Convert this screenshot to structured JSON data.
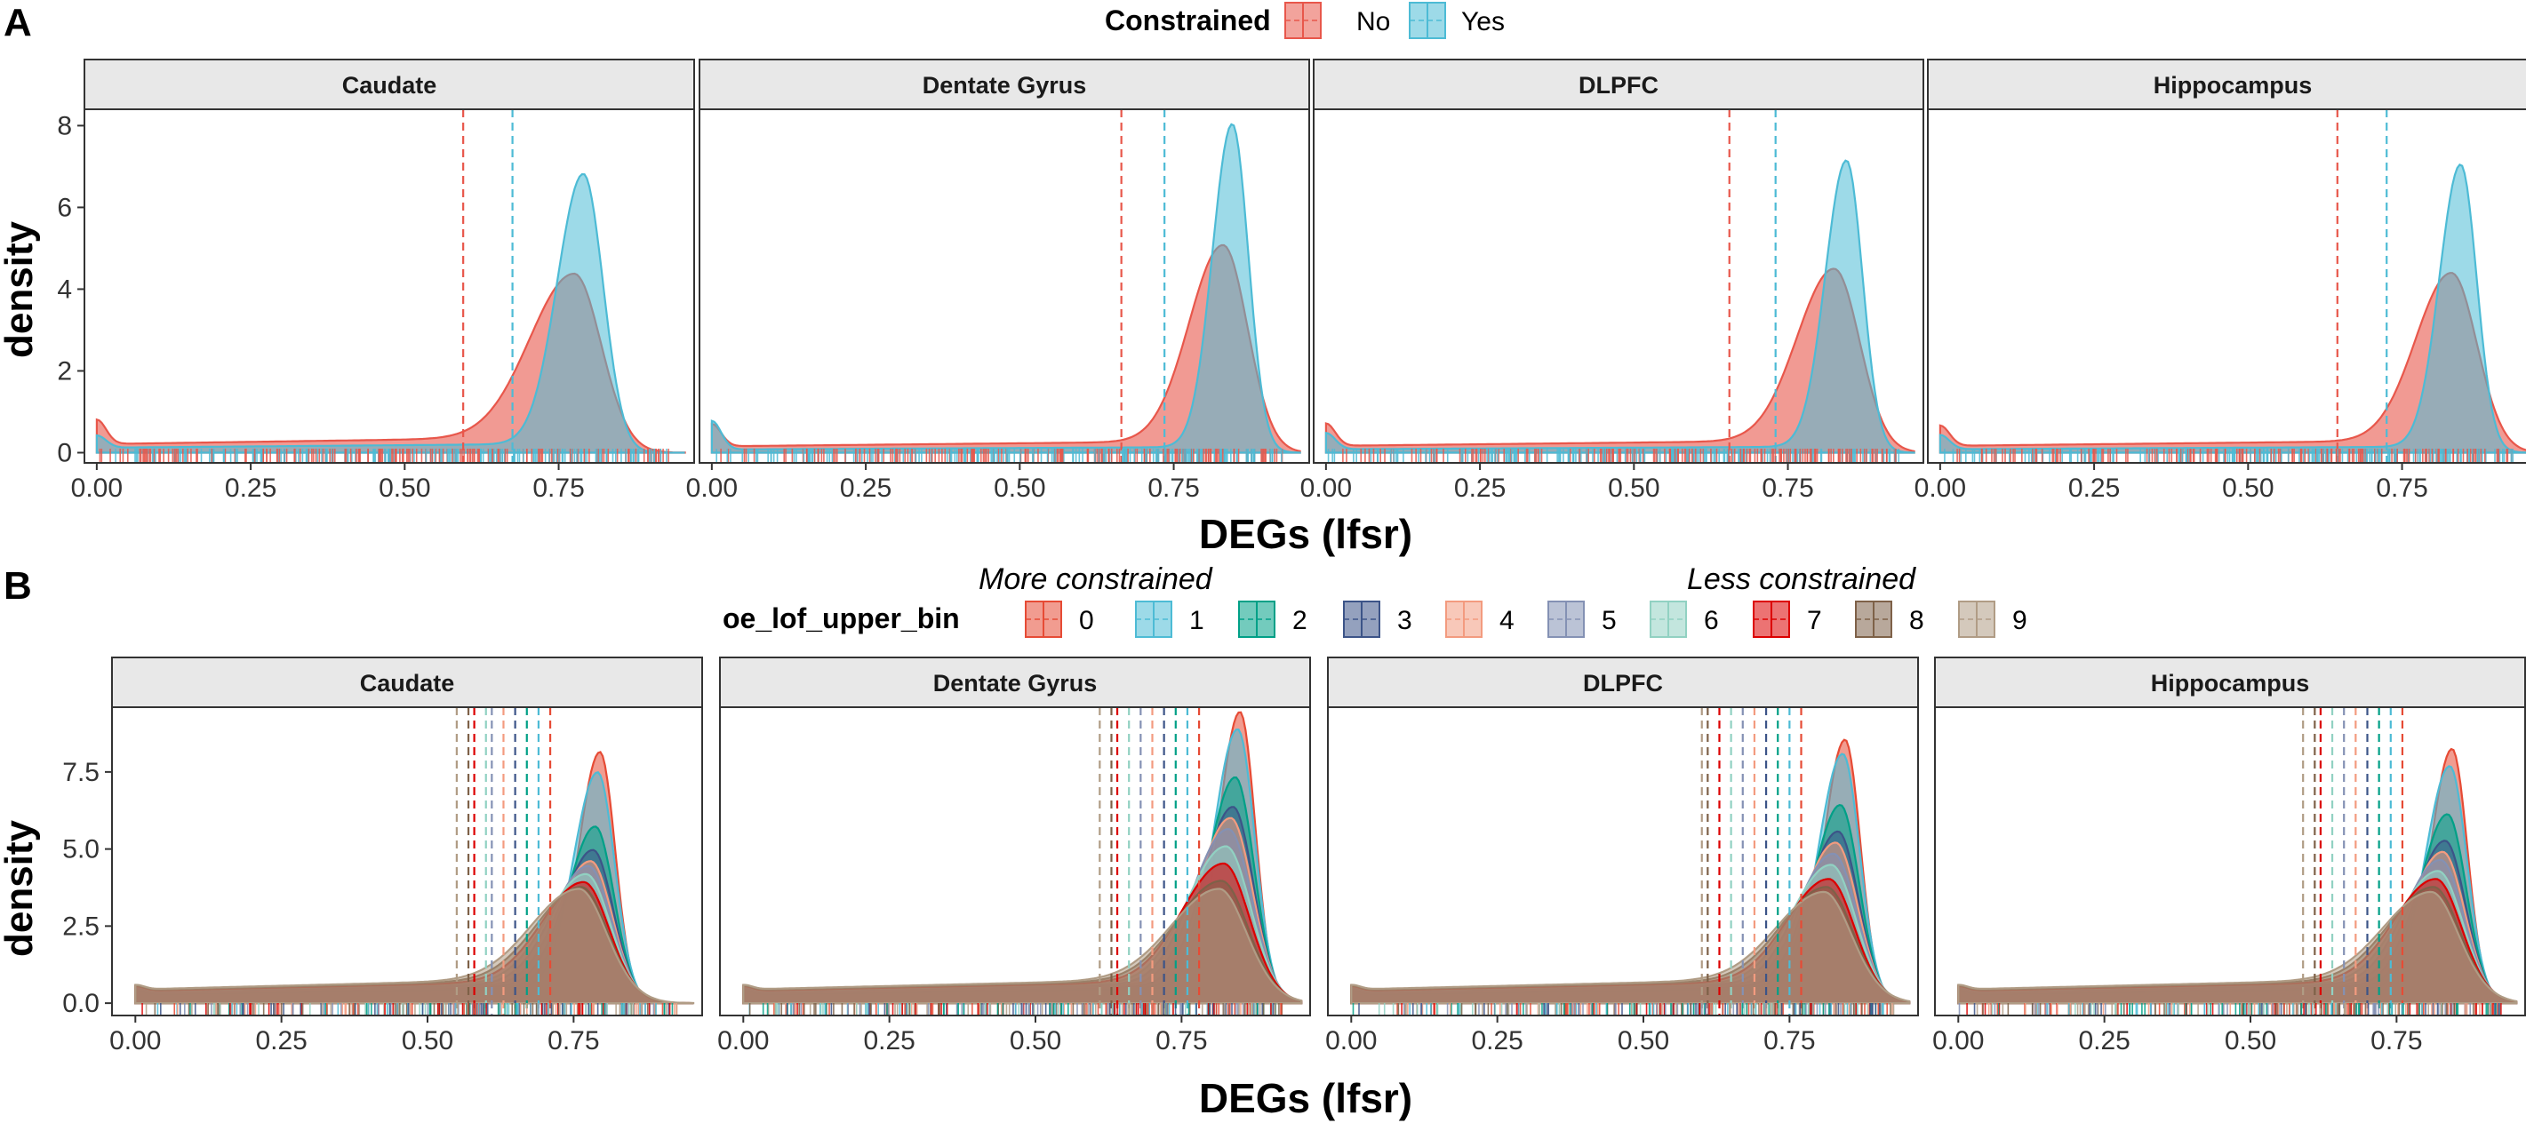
{
  "figure": {
    "panel_a_letter": "A",
    "panel_b_letter": "B"
  },
  "colors": {
    "constrained_no": "#E8574B",
    "constrained_yes": "#4DBBD5",
    "bins": [
      "#E64B35",
      "#4DBBD5",
      "#00A087",
      "#3C5488",
      "#F39B7F",
      "#8491B4",
      "#91D1C2",
      "#DC0000",
      "#7E6148",
      "#B09C85"
    ]
  },
  "chart_data": [
    {
      "type": "area",
      "panel": "A",
      "subtype": "density",
      "facets": [
        "Caudate",
        "Dentate Gyrus",
        "DLPFC",
        "Hippocampus"
      ],
      "xlabel": "DEGs (lfsr)",
      "ylabel": "density",
      "xlim": [
        -0.02,
        0.97
      ],
      "ylim": [
        -0.25,
        8.4
      ],
      "xticks": [
        "0.00",
        "0.25",
        "0.50",
        "0.75"
      ],
      "yticks": [
        "0",
        "2",
        "4",
        "6",
        "8"
      ],
      "legend": {
        "title": "Constrained",
        "position": "top",
        "entries": [
          "No",
          "Yes"
        ]
      },
      "grid": false,
      "rug": true,
      "series_params": {
        "Caudate": {
          "No": {
            "peak_x": 0.775,
            "peak_y": 4.0,
            "sd_left": 0.072,
            "sd_right": 0.045,
            "tail_y": 0.38,
            "bump_y": 0.6,
            "mean_line": 0.595
          },
          "Yes": {
            "peak_x": 0.79,
            "peak_y": 6.6,
            "sd_left": 0.042,
            "sd_right": 0.032,
            "tail_y": 0.22,
            "bump_y": 0.3,
            "mean_line": 0.675
          }
        },
        "Dentate Gyrus": {
          "No": {
            "peak_x": 0.83,
            "peak_y": 4.8,
            "sd_left": 0.055,
            "sd_right": 0.04,
            "tail_y": 0.28,
            "bump_y": 0.55,
            "mean_line": 0.665
          },
          "Yes": {
            "peak_x": 0.845,
            "peak_y": 7.9,
            "sd_left": 0.032,
            "sd_right": 0.026,
            "tail_y": 0.14,
            "bump_y": 0.7,
            "mean_line": 0.735
          }
        },
        "DLPFC": {
          "No": {
            "peak_x": 0.825,
            "peak_y": 4.2,
            "sd_left": 0.06,
            "sd_right": 0.042,
            "tail_y": 0.3,
            "bump_y": 0.55,
            "mean_line": 0.655
          },
          "Yes": {
            "peak_x": 0.845,
            "peak_y": 7.0,
            "sd_left": 0.034,
            "sd_right": 0.026,
            "tail_y": 0.15,
            "bump_y": 0.4,
            "mean_line": 0.73
          }
        },
        "Hippocampus": {
          "No": {
            "peak_x": 0.83,
            "peak_y": 4.1,
            "sd_left": 0.058,
            "sd_right": 0.042,
            "tail_y": 0.3,
            "bump_y": 0.5,
            "mean_line": 0.645
          },
          "Yes": {
            "peak_x": 0.845,
            "peak_y": 6.9,
            "sd_left": 0.034,
            "sd_right": 0.026,
            "tail_y": 0.15,
            "bump_y": 0.35,
            "mean_line": 0.725
          }
        }
      }
    },
    {
      "type": "area",
      "panel": "B",
      "subtype": "density",
      "facets": [
        "Caudate",
        "Dentate Gyrus",
        "DLPFC",
        "Hippocampus"
      ],
      "xlabel": "DEGs (lfsr)",
      "ylabel": "density",
      "xlim": [
        -0.04,
        0.97
      ],
      "ylim": [
        -0.4,
        9.6
      ],
      "xticks": [
        "0.00",
        "0.25",
        "0.50",
        "0.75"
      ],
      "yticks": [
        "0.0",
        "2.5",
        "5.0",
        "7.5"
      ],
      "legend": {
        "title": "oe_lof_upper_bin",
        "position": "top",
        "subtitle_left": "More constrained",
        "subtitle_right": "Less constrained",
        "entries": [
          "0",
          "1",
          "2",
          "3",
          "4",
          "5",
          "6",
          "7",
          "8",
          "9"
        ]
      },
      "grid": false,
      "rug": true,
      "peaks": {
        "Caudate": [
          7.7,
          7.0,
          5.2,
          4.4,
          4.0,
          3.8,
          3.5,
          3.2,
          3.0,
          2.9
        ],
        "Dentate Gyrus": [
          9.0,
          8.4,
          6.8,
          5.8,
          5.4,
          5.0,
          4.4,
          3.8,
          3.2,
          2.9
        ],
        "DLPFC": [
          8.1,
          7.6,
          5.9,
          5.0,
          4.6,
          4.2,
          3.8,
          3.3,
          3.0,
          2.8
        ],
        "Hippocampus": [
          7.8,
          7.2,
          5.6,
          4.7,
          4.3,
          4.0,
          3.6,
          3.3,
          3.0,
          2.8
        ]
      },
      "peak_x": {
        "Caudate": 0.795,
        "Dentate Gyrus": 0.85,
        "DLPFC": 0.845,
        "Hippocampus": 0.845
      },
      "mean_lines": {
        "Caudate": [
          0.71,
          0.69,
          0.67,
          0.65,
          0.63,
          0.61,
          0.6,
          0.58,
          0.57,
          0.55
        ],
        "Dentate Gyrus": [
          0.78,
          0.76,
          0.74,
          0.72,
          0.7,
          0.68,
          0.66,
          0.64,
          0.63,
          0.61
        ],
        "DLPFC": [
          0.77,
          0.75,
          0.73,
          0.71,
          0.69,
          0.67,
          0.65,
          0.63,
          0.61,
          0.6
        ],
        "Hippocampus": [
          0.76,
          0.74,
          0.72,
          0.7,
          0.68,
          0.66,
          0.64,
          0.62,
          0.61,
          0.59
        ]
      }
    }
  ]
}
